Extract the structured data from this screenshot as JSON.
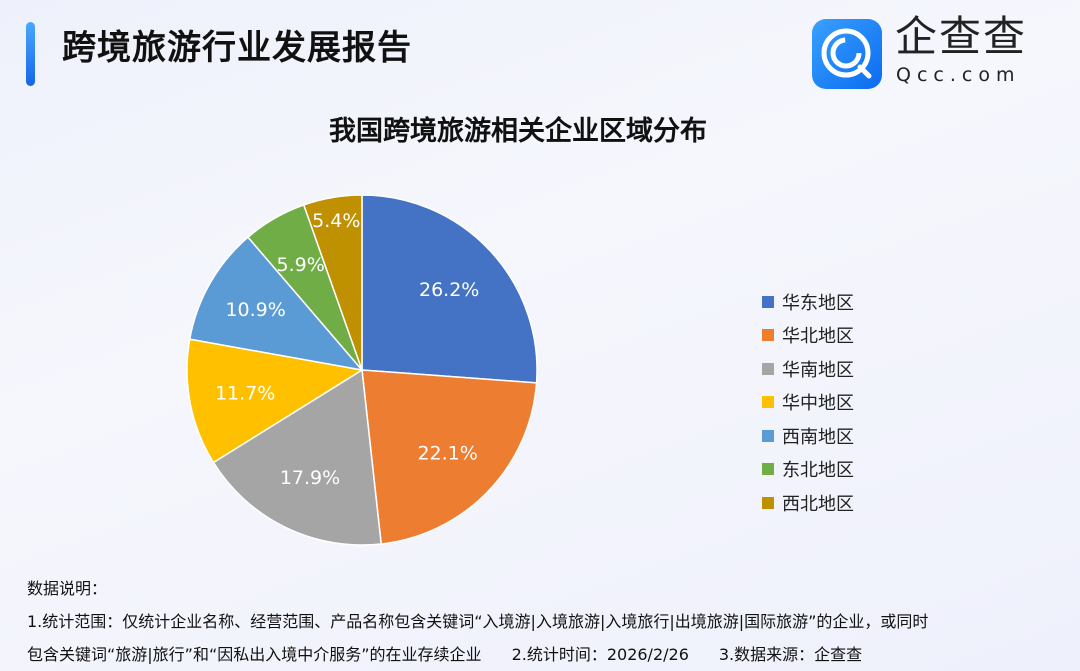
{
  "header": {
    "title": "跨境旅游行业发展报告",
    "logo_cn": "企查查",
    "logo_en": "Qcc.com"
  },
  "chart_data": {
    "type": "pie",
    "title": "我国跨境旅游相关企业区域分布",
    "categories": [
      "华东地区",
      "华北地区",
      "华南地区",
      "华中地区",
      "西南地区",
      "东北地区",
      "西北地区"
    ],
    "values": [
      26.2,
      22.1,
      17.9,
      11.7,
      10.9,
      5.9,
      5.4
    ],
    "labels": [
      "26.2%",
      "22.1%",
      "17.9%",
      "11.7%",
      "10.9%",
      "5.9%",
      "5.4%"
    ],
    "colors": [
      "#4472C4",
      "#ED7D31",
      "#A5A5A5",
      "#FFC000",
      "#5B9BD5",
      "#70AD47",
      "#BF9000"
    ],
    "legend_position": "right"
  },
  "notes": {
    "heading": "数据说明：",
    "line1": "1.统计范围：仅统计企业名称、经营范围、产品名称包含关键词“入境游|入境旅游|入境旅行|出境旅游|国际旅游”的企业，或同时",
    "line2": "包含关键词“旅游|旅行”和“因私出入境中介服务”的在业存续企业",
    "time": "2.统计时间：2026/2/26",
    "source": "3.数据来源：企查查"
  }
}
